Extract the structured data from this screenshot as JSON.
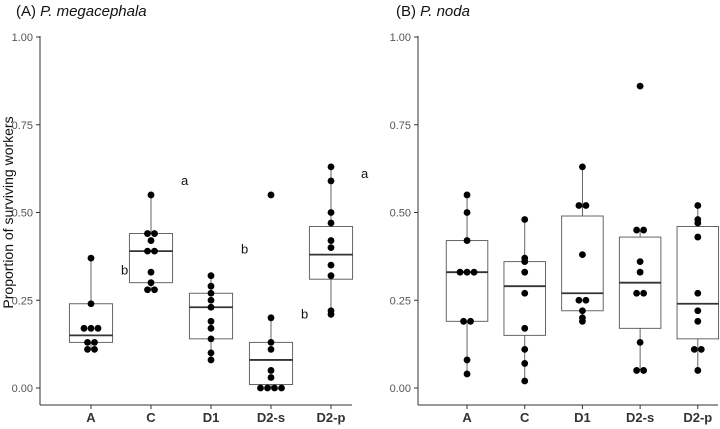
{
  "chart_data": [
    {
      "type": "boxplot",
      "title_prefix": "(A) ",
      "title_species": "P. megacephala",
      "ylabel": "Proportion of surviving workers",
      "xlabel": "",
      "ylim": [
        0,
        1
      ],
      "yticks": [
        0.0,
        0.25,
        0.5,
        0.75,
        1.0
      ],
      "ytick_labels": [
        "0.00",
        "0.25",
        "0.50",
        "0.75",
        "1.00"
      ],
      "categories": [
        "A",
        "C",
        "D1",
        "D2-s",
        "D2-p"
      ],
      "groups": [
        {
          "name": "A",
          "min": 0.11,
          "q1": 0.13,
          "median": 0.15,
          "q3": 0.24,
          "max": 0.37,
          "points": [
            0.11,
            0.11,
            0.13,
            0.13,
            0.17,
            0.17,
            0.17,
            0.24,
            0.37
          ],
          "letter": "b",
          "letter_y": 0.335
        },
        {
          "name": "C",
          "min": 0.28,
          "q1": 0.3,
          "median": 0.39,
          "q3": 0.44,
          "max": 0.55,
          "points": [
            0.28,
            0.28,
            0.3,
            0.33,
            0.39,
            0.39,
            0.42,
            0.44,
            0.44,
            0.55
          ],
          "letter": "a",
          "letter_y": 0.59
        },
        {
          "name": "D1",
          "min": 0.08,
          "q1": 0.14,
          "median": 0.23,
          "q3": 0.27,
          "max": 0.32,
          "points": [
            0.08,
            0.1,
            0.14,
            0.17,
            0.19,
            0.23,
            0.25,
            0.27,
            0.29,
            0.32
          ],
          "letter": "b",
          "letter_y": 0.395
        },
        {
          "name": "D2-s",
          "min": 0.0,
          "q1": 0.01,
          "median": 0.08,
          "q3": 0.13,
          "max": 0.2,
          "points": [
            0.0,
            0.0,
            0.0,
            0.0,
            0.03,
            0.05,
            0.11,
            0.13,
            0.2,
            0.55
          ],
          "letter": "b",
          "letter_y": 0.21
        },
        {
          "name": "D2-p",
          "min": 0.21,
          "q1": 0.31,
          "median": 0.38,
          "q3": 0.46,
          "max": 0.63,
          "points": [
            0.21,
            0.22,
            0.32,
            0.35,
            0.4,
            0.42,
            0.47,
            0.5,
            0.59,
            0.63
          ],
          "letter": "a",
          "letter_y": 0.61
        }
      ]
    },
    {
      "type": "boxplot",
      "title_prefix": "(B) ",
      "title_species": "P. noda",
      "ylabel": "",
      "xlabel": "",
      "ylim": [
        0,
        1
      ],
      "yticks": [
        0.0,
        0.25,
        0.5,
        0.75,
        1.0
      ],
      "ytick_labels": [
        "0.00",
        "0.25",
        "0.50",
        "0.75",
        "1.00"
      ],
      "categories": [
        "A",
        "C",
        "D1",
        "D2-s",
        "D2-p"
      ],
      "groups": [
        {
          "name": "A",
          "min": 0.04,
          "q1": 0.19,
          "median": 0.33,
          "q3": 0.42,
          "max": 0.55,
          "points": [
            0.04,
            0.08,
            0.19,
            0.19,
            0.33,
            0.33,
            0.33,
            0.42,
            0.5,
            0.55
          ]
        },
        {
          "name": "C",
          "min": 0.02,
          "q1": 0.15,
          "median": 0.29,
          "q3": 0.36,
          "max": 0.48,
          "points": [
            0.02,
            0.07,
            0.11,
            0.17,
            0.27,
            0.33,
            0.36,
            0.37,
            0.48
          ]
        },
        {
          "name": "D1",
          "min": 0.19,
          "q1": 0.22,
          "median": 0.27,
          "q3": 0.49,
          "max": 0.63,
          "points": [
            0.19,
            0.2,
            0.22,
            0.25,
            0.25,
            0.38,
            0.52,
            0.52,
            0.63
          ]
        },
        {
          "name": "D2-s",
          "min": 0.05,
          "q1": 0.17,
          "median": 0.3,
          "q3": 0.43,
          "max": 0.45,
          "points": [
            0.05,
            0.05,
            0.13,
            0.27,
            0.27,
            0.33,
            0.36,
            0.45,
            0.45,
            0.86
          ]
        },
        {
          "name": "D2-p",
          "min": 0.05,
          "q1": 0.14,
          "median": 0.24,
          "q3": 0.46,
          "max": 0.52,
          "points": [
            0.05,
            0.11,
            0.11,
            0.19,
            0.22,
            0.27,
            0.43,
            0.47,
            0.48,
            0.52
          ]
        }
      ]
    }
  ]
}
